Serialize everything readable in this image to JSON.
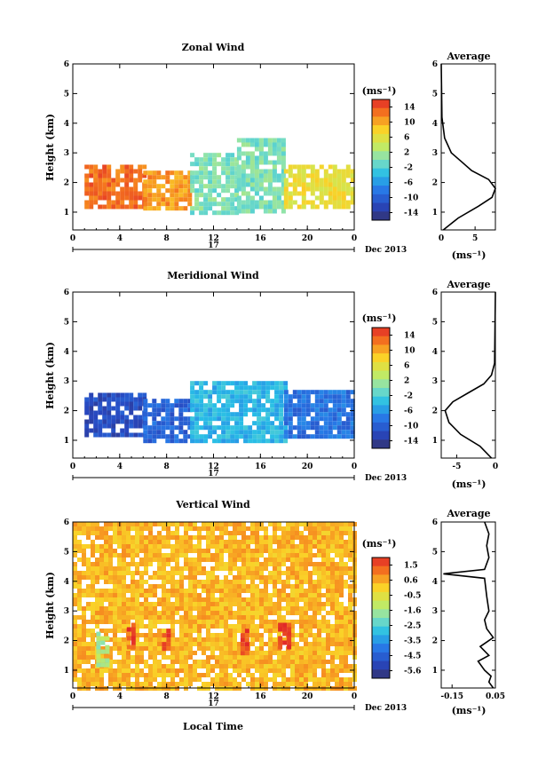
{
  "figure": {
    "x_axis_label": "Local Time",
    "date_day": "17",
    "date_month": "Dec 2013"
  },
  "chart_data": [
    {
      "type": "heatmap",
      "title": "Zonal Wind",
      "xlabel": "",
      "ylabel": "Height (km)",
      "xlim": [
        0,
        24
      ],
      "ylim": [
        0.4,
        6.0
      ],
      "xticks": [
        "0",
        "4",
        "8",
        "12",
        "16",
        "20",
        "0"
      ],
      "yticks": [
        "1",
        "2",
        "3",
        "4",
        "5",
        "6"
      ],
      "colorbar": {
        "unit": "(ms⁻¹)",
        "min": -15,
        "max": 15,
        "ticks": [
          "14",
          "10",
          "6",
          "2",
          "-2",
          "-6",
          "-10",
          "-14"
        ]
      },
      "description_regions": [
        {
          "hours": [
            1,
            6
          ],
          "height_km": [
            1.2,
            2.6
          ],
          "value": 12
        },
        {
          "hours": [
            6,
            10
          ],
          "height_km": [
            1.2,
            2.4
          ],
          "value": 10
        },
        {
          "hours": [
            10,
            14
          ],
          "height_km": [
            1.0,
            3.0
          ],
          "value": 0
        },
        {
          "hours": [
            14,
            18
          ],
          "height_km": [
            1.0,
            3.5
          ],
          "value": 0
        },
        {
          "hours": [
            18,
            24
          ],
          "height_km": [
            1.2,
            2.6
          ],
          "value": 6
        }
      ]
    },
    {
      "type": "line",
      "title": "Average",
      "xlabel": "(ms⁻¹)",
      "ylabel": "",
      "xlim": [
        0,
        8
      ],
      "ylim": [
        0.4,
        6.0
      ],
      "xticks": [
        "0",
        "5"
      ],
      "yticks": [
        "1",
        "2",
        "3",
        "4",
        "5",
        "6"
      ],
      "series": [
        {
          "x": [
            0.3,
            2.5,
            5.5,
            7.5,
            8.0,
            7.0,
            4.5,
            3.0,
            1.5,
            0.5,
            0.1,
            0.0
          ],
          "y": [
            0.4,
            0.8,
            1.2,
            1.5,
            1.8,
            2.1,
            2.4,
            2.7,
            3.0,
            3.5,
            4.2,
            6.0
          ]
        }
      ]
    },
    {
      "type": "heatmap",
      "title": "Meridional Wind",
      "xlabel": "",
      "ylabel": "Height (km)",
      "xlim": [
        0,
        24
      ],
      "ylim": [
        0.4,
        6.0
      ],
      "xticks": [
        "0",
        "4",
        "8",
        "12",
        "16",
        "20",
        "0"
      ],
      "yticks": [
        "1",
        "2",
        "3",
        "4",
        "5",
        "6"
      ],
      "colorbar": {
        "unit": "(ms⁻¹)",
        "min": -15,
        "max": 15,
        "ticks": [
          "14",
          "10",
          "6",
          "2",
          "-2",
          "-6",
          "-10",
          "-14"
        ]
      },
      "description_regions": [
        {
          "hours": [
            1,
            6
          ],
          "height_km": [
            1.2,
            2.6
          ],
          "value": -11
        },
        {
          "hours": [
            6,
            10
          ],
          "height_km": [
            1.0,
            2.4
          ],
          "value": -9
        },
        {
          "hours": [
            10,
            18
          ],
          "height_km": [
            1.0,
            3.0
          ],
          "value": -4
        },
        {
          "hours": [
            18,
            24
          ],
          "height_km": [
            1.2,
            2.7
          ],
          "value": -8
        }
      ]
    },
    {
      "type": "line",
      "title": "Average",
      "xlabel": "(ms⁻¹)",
      "ylabel": "",
      "xlim": [
        -7,
        0
      ],
      "ylim": [
        0.4,
        6.0
      ],
      "xticks": [
        "-5",
        "0"
      ],
      "yticks": [
        "1",
        "2",
        "3",
        "4",
        "5",
        "6"
      ],
      "series": [
        {
          "x": [
            -0.5,
            -2.0,
            -4.5,
            -6.0,
            -6.5,
            -5.5,
            -3.5,
            -1.5,
            -0.5,
            -0.1,
            0.0
          ],
          "y": [
            0.4,
            0.8,
            1.2,
            1.6,
            2.0,
            2.3,
            2.6,
            2.9,
            3.2,
            3.6,
            6.0
          ]
        }
      ]
    },
    {
      "type": "heatmap",
      "title": "Vertical Wind",
      "xlabel": "Local Time",
      "ylabel": "Height (km)",
      "xlim": [
        0,
        24
      ],
      "ylim": [
        0.4,
        6.0
      ],
      "xticks": [
        "0",
        "4",
        "8",
        "12",
        "16",
        "20",
        "0"
      ],
      "yticks": [
        "1",
        "2",
        "3",
        "4",
        "5",
        "6"
      ],
      "colorbar": {
        "unit": "(ms⁻¹)",
        "min": -6.1,
        "max": 2.0,
        "ticks": [
          "1.5",
          "0.6",
          "-0.5",
          "-1.6",
          "-2.5",
          "-3.5",
          "-4.5",
          "-5.6"
        ]
      },
      "description_regions": [
        {
          "hours": [
            0,
            24
          ],
          "height_km": [
            0.4,
            6.0
          ],
          "value": 0.3
        },
        {
          "hours": [
            4.6,
            5.2
          ],
          "height_km": [
            1.8,
            2.6
          ],
          "value": 1.6
        },
        {
          "hours": [
            7.6,
            8.1
          ],
          "height_km": [
            1.8,
            2.4
          ],
          "value": 1.5
        },
        {
          "hours": [
            14.3,
            14.8
          ],
          "height_km": [
            1.6,
            2.4
          ],
          "value": 1.6
        },
        {
          "hours": [
            17.5,
            18.3
          ],
          "height_km": [
            1.8,
            2.6
          ],
          "value": 1.7
        },
        {
          "hours": [
            2.0,
            3.0
          ],
          "height_km": [
            1.2,
            2.3
          ],
          "value": -1.5
        }
      ]
    },
    {
      "type": "line",
      "title": "Average",
      "xlabel": "(ms⁻¹)",
      "ylabel": "",
      "xlim": [
        -0.2,
        0.05
      ],
      "ylim": [
        0.4,
        6.0
      ],
      "xticks": [
        "-0.15",
        "0.05"
      ],
      "yticks": [
        "1",
        "2",
        "3",
        "4",
        "5",
        "6"
      ],
      "series": [
        {
          "x": [
            0.04,
            0.02,
            0.03,
            0.0,
            -0.03,
            0.02,
            -0.02,
            0.04,
            0.01,
            0.0,
            0.02,
            0.01,
            0.0,
            -0.19,
            0.0,
            0.02,
            0.01,
            0.02,
            0.0
          ],
          "y": [
            0.4,
            0.6,
            0.8,
            1.0,
            1.3,
            1.5,
            1.8,
            2.1,
            2.4,
            2.7,
            3.0,
            3.5,
            4.1,
            4.25,
            4.4,
            4.8,
            5.2,
            5.6,
            6.0
          ]
        }
      ]
    }
  ]
}
